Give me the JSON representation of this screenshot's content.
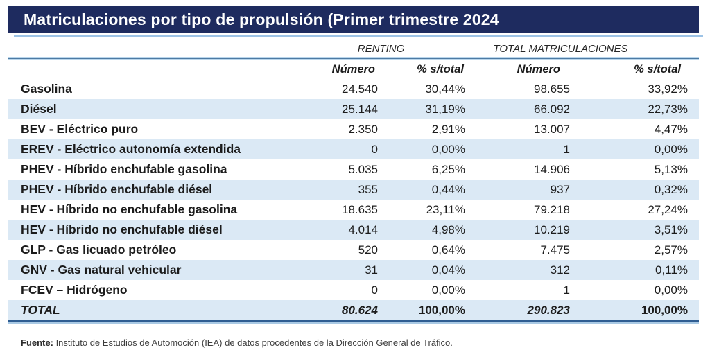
{
  "title": "Matriculaciones por tipo de propulsión (Primer trimestre 2024",
  "footer": {
    "source_label": "Fuente:",
    "source_text": " Instituto de Estudios de Automoción (IEA) de datos procedentes de la Dirección General de Tráfico."
  },
  "colors": {
    "banner_bg": "#1e2b5f",
    "banner_text": "#ffffff",
    "row_stripe": "#dbe9f5",
    "banner_shadow": "#9dc3e6",
    "divider_dark": "#4d7aa3",
    "divider_light": "#b9d6ec",
    "bottom_border": "#2f5d92",
    "body_text": "#1c1c1c"
  },
  "chart_data": {
    "type": "table",
    "title": "Matriculaciones por tipo de propulsión (Primer trimestre 2024",
    "column_groups": [
      "RENTING",
      "TOTAL MATRICULACIONES"
    ],
    "columns": [
      "",
      "Número",
      "% s/total",
      "Número",
      "% s/total"
    ],
    "rows": [
      [
        "Gasolina",
        "24.540",
        "30,44%",
        "98.655",
        "33,92%"
      ],
      [
        "Diésel",
        "25.144",
        "31,19%",
        "66.092",
        "22,73%"
      ],
      [
        "BEV - Eléctrico puro",
        "2.350",
        "2,91%",
        "13.007",
        "4,47%"
      ],
      [
        "EREV - Eléctrico autonomía extendida",
        "0",
        "0,00%",
        "1",
        "0,00%"
      ],
      [
        "PHEV - Híbrido enchufable gasolina",
        "5.035",
        "6,25%",
        "14.906",
        "5,13%"
      ],
      [
        "PHEV - Híbrido enchufable diésel",
        "355",
        "0,44%",
        "937",
        "0,32%"
      ],
      [
        "HEV - Híbrido no enchufable gasolina",
        "18.635",
        "23,11%",
        "79.218",
        "27,24%"
      ],
      [
        "HEV - Híbrido no enchufable diésel",
        "4.014",
        "4,98%",
        "10.219",
        "3,51%"
      ],
      [
        "GLP - Gas licuado petróleo",
        "520",
        "0,64%",
        "7.475",
        "2,57%"
      ],
      [
        "GNV - Gas natural vehicular",
        "31",
        "0,04%",
        "312",
        "0,11%"
      ],
      [
        "FCEV – Hidrógeno",
        "0",
        "0,00%",
        "1",
        "0,00%"
      ]
    ],
    "total_row": [
      "TOTAL",
      "80.624",
      "100,00%",
      "290.823",
      "100,00%"
    ],
    "layout": {
      "striped_rows": "every second data row and total row",
      "value_alignment": "right",
      "label_alignment": "left"
    }
  }
}
